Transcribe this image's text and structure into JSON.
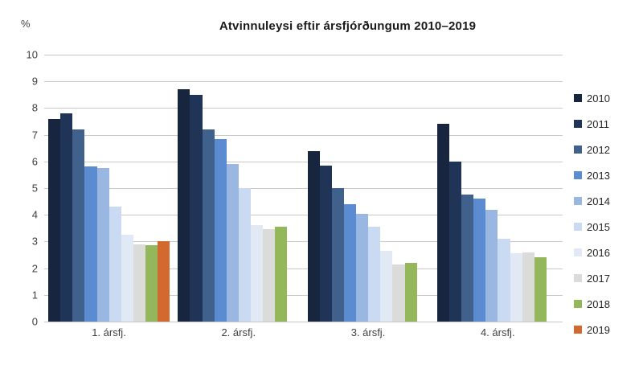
{
  "chart_data": {
    "type": "bar",
    "title": "Atvinnuleysi eftir ársfjórðungum 2010–2019",
    "y_axis_unit": "%",
    "categories": [
      "1. ársfj.",
      "2. ársfj.",
      "3. ársfj.",
      "4. ársfj."
    ],
    "y_ticks": [
      0,
      1,
      2,
      3,
      4,
      5,
      6,
      7,
      8,
      9,
      10
    ],
    "ylim": [
      0,
      10
    ],
    "grid": true,
    "legend_position": "right",
    "gridline_color": "#c9c9c9",
    "series": [
      {
        "name": "2010",
        "color": "#17253f",
        "values": [
          7.6,
          8.7,
          6.4,
          7.4
        ]
      },
      {
        "name": "2011",
        "color": "#1f3456",
        "values": [
          7.8,
          8.5,
          5.85,
          6.0
        ]
      },
      {
        "name": "2012",
        "color": "#40618c",
        "values": [
          7.2,
          7.2,
          5.0,
          4.75
        ]
      },
      {
        "name": "2013",
        "color": "#5b8bd0",
        "values": [
          5.8,
          6.85,
          4.4,
          4.6
        ]
      },
      {
        "name": "2014",
        "color": "#9ab7e2",
        "values": [
          5.75,
          5.9,
          4.05,
          4.2
        ]
      },
      {
        "name": "2015",
        "color": "#c9daf2",
        "values": [
          4.3,
          5.0,
          3.55,
          3.1
        ]
      },
      {
        "name": "2016",
        "color": "#e1e9f5",
        "values": [
          3.25,
          3.6,
          2.65,
          2.55
        ]
      },
      {
        "name": "2017",
        "color": "#dbdbd9",
        "values": [
          2.9,
          3.45,
          2.15,
          2.6
        ]
      },
      {
        "name": "2018",
        "color": "#95b75b",
        "values": [
          2.85,
          3.55,
          2.2,
          2.4
        ]
      },
      {
        "name": "2019",
        "color": "#d2692f",
        "values": [
          3.0,
          null,
          null,
          null
        ]
      }
    ]
  }
}
